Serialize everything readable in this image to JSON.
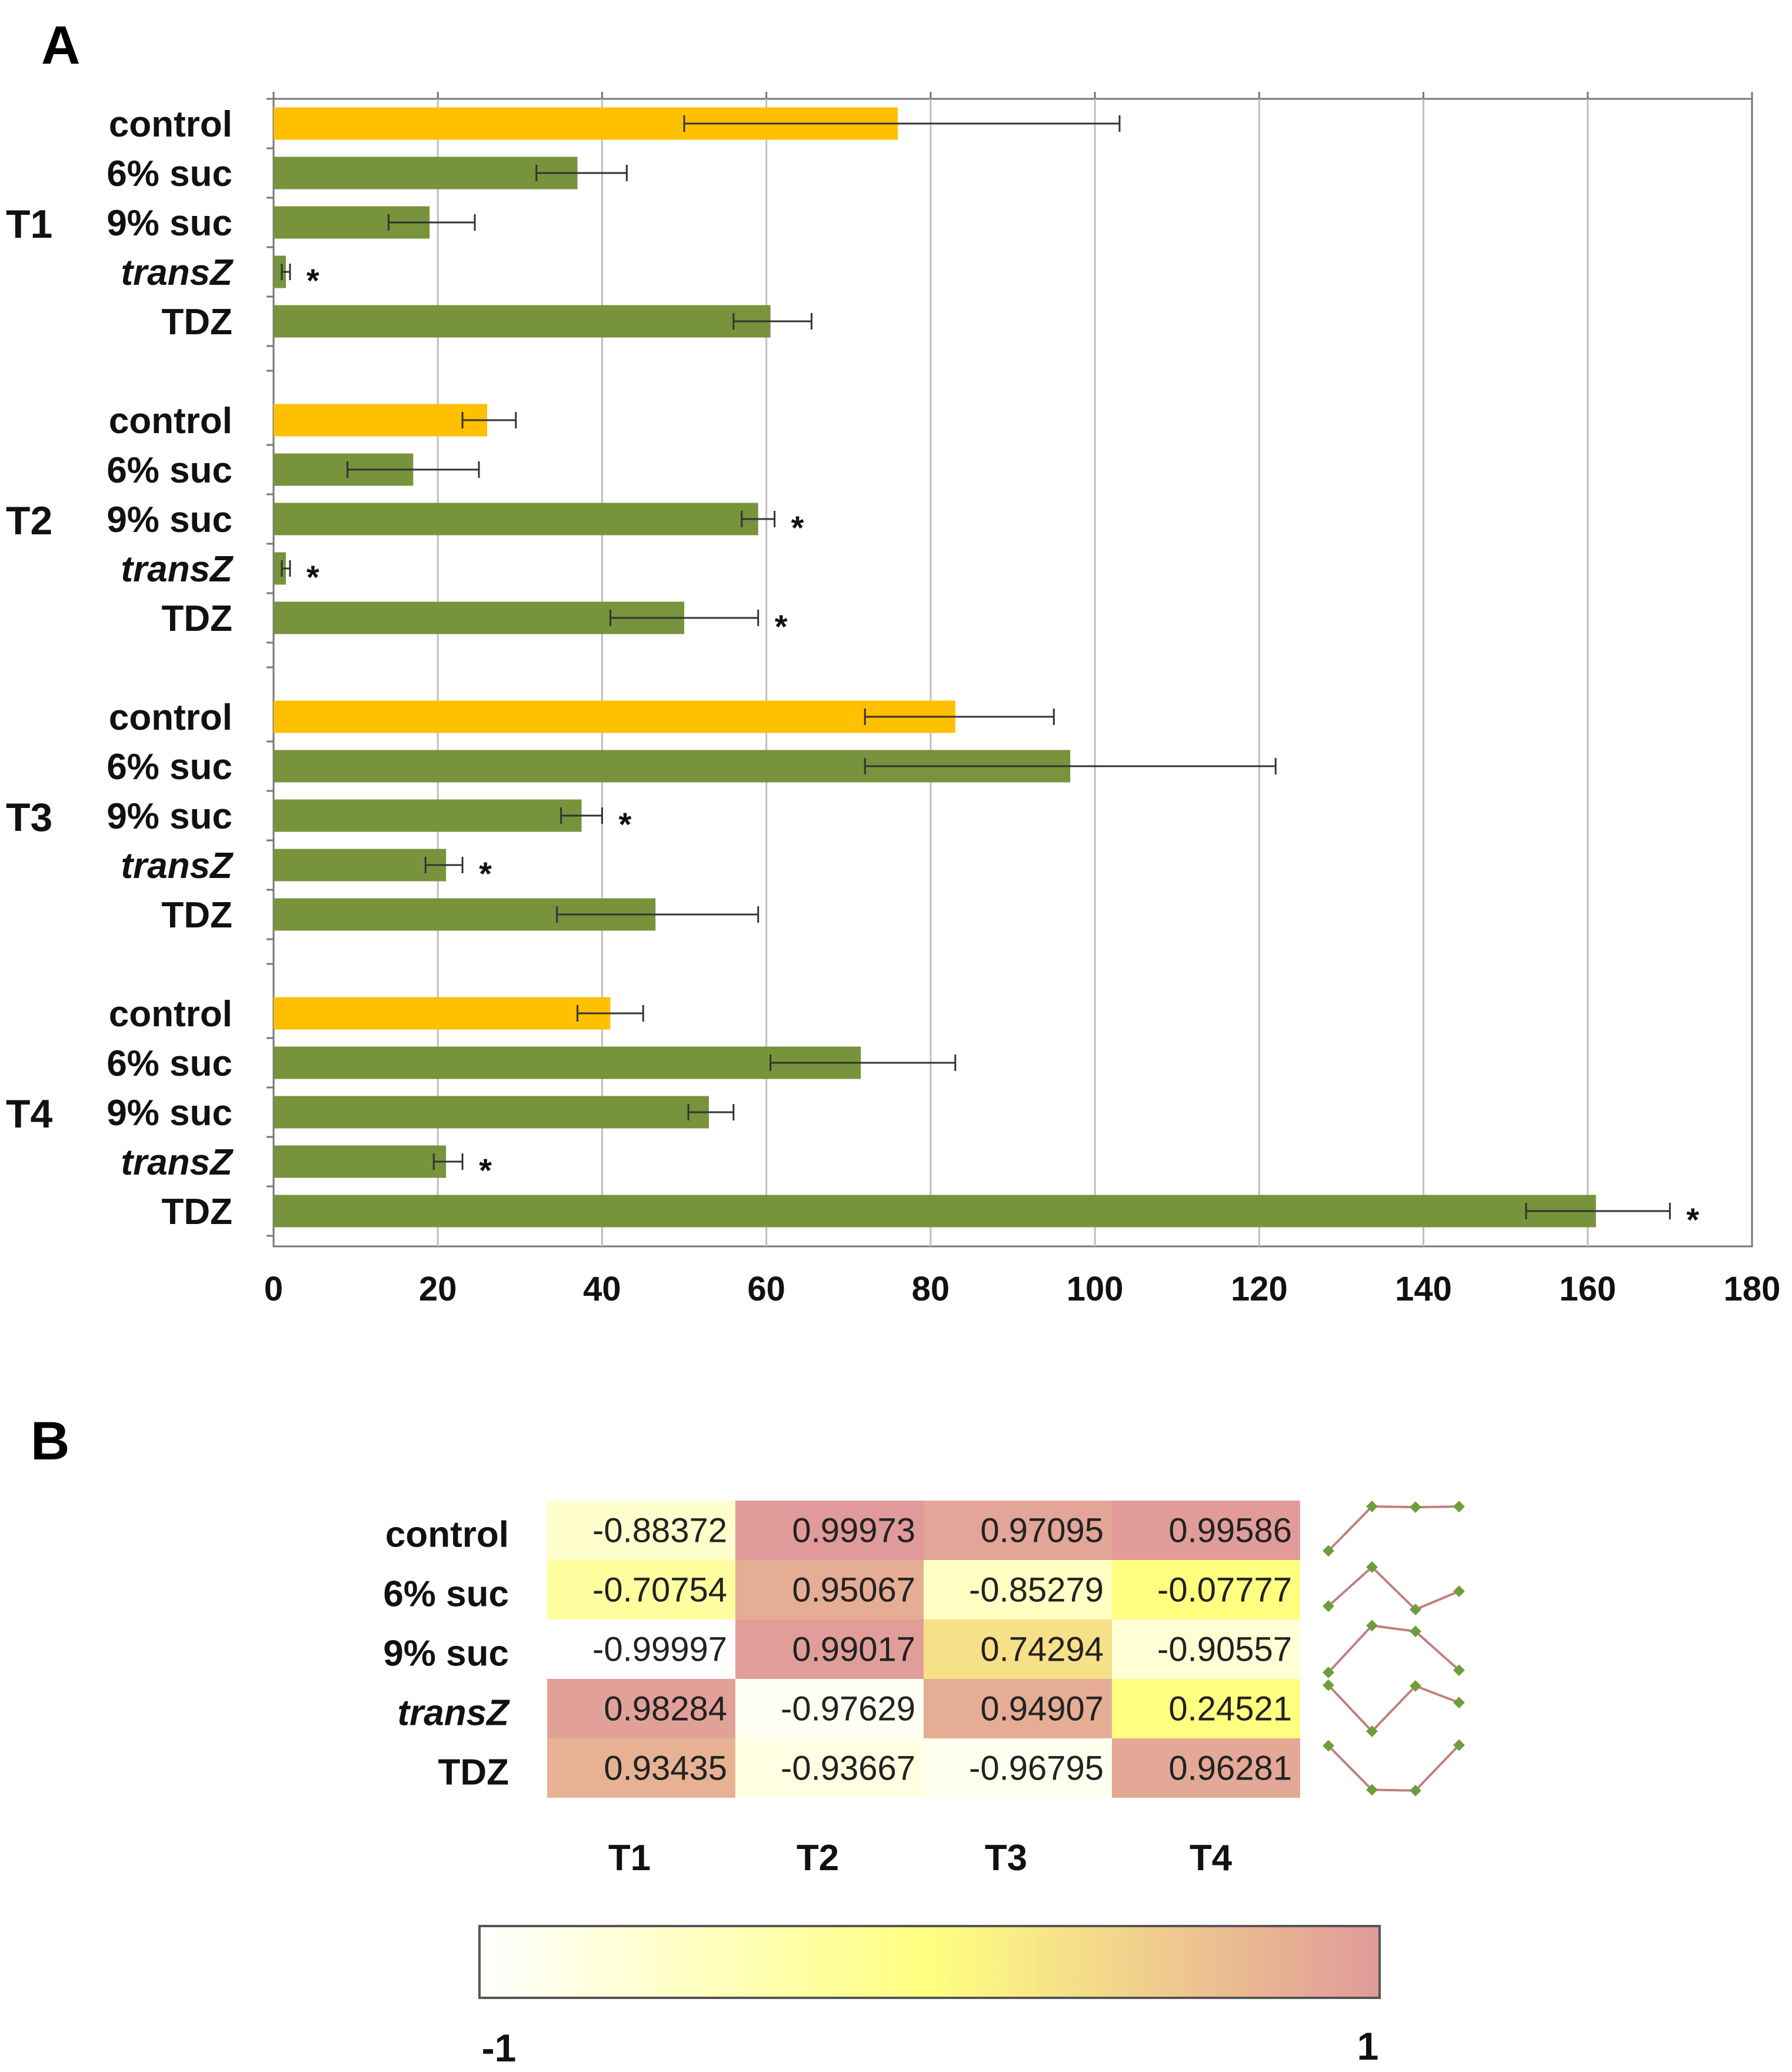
{
  "panel_a_letter": "A",
  "panel_b_letter": "B",
  "chart_data": [
    {
      "type": "bar",
      "orientation": "horizontal",
      "title": "",
      "xlabel": "",
      "ylabel": "",
      "xlim": [
        0,
        180
      ],
      "x_ticks": [
        "0",
        "20",
        "40",
        "60",
        "80",
        "100",
        "120",
        "140",
        "160",
        "180"
      ],
      "grid": "vertical",
      "colors": {
        "control": "#FFC000",
        "treatment": "#77933C"
      },
      "groups": [
        {
          "label": "T1",
          "bars": [
            {
              "label": "control",
              "italic": false,
              "value": 76,
              "err_low": 50,
              "err_high": 103,
              "sig": "",
              "color_key": "control"
            },
            {
              "label": "6% suc",
              "italic": false,
              "value": 37,
              "err_low": 32,
              "err_high": 43,
              "sig": "",
              "color_key": "treatment"
            },
            {
              "label": "9% suc",
              "italic": false,
              "value": 19,
              "err_low": 14,
              "err_high": 24.5,
              "sig": "",
              "color_key": "treatment"
            },
            {
              "label": "transZ",
              "italic": true,
              "value": 1.5,
              "err_low": 1,
              "err_high": 2,
              "sig": "*",
              "color_key": "treatment"
            },
            {
              "label": "TDZ",
              "italic": false,
              "value": 60.5,
              "err_low": 56,
              "err_high": 65.5,
              "sig": "",
              "color_key": "treatment"
            }
          ]
        },
        {
          "label": "T2",
          "bars": [
            {
              "label": "control",
              "italic": false,
              "value": 26,
              "err_low": 23,
              "err_high": 29.5,
              "sig": "",
              "color_key": "control"
            },
            {
              "label": "6% suc",
              "italic": false,
              "value": 17,
              "err_low": 9,
              "err_high": 25,
              "sig": "",
              "color_key": "treatment"
            },
            {
              "label": "9% suc",
              "italic": false,
              "value": 59,
              "err_low": 57,
              "err_high": 61,
              "sig": "*",
              "color_key": "treatment"
            },
            {
              "label": "transZ",
              "italic": true,
              "value": 1.5,
              "err_low": 1,
              "err_high": 2,
              "sig": "*",
              "color_key": "treatment"
            },
            {
              "label": "TDZ",
              "italic": false,
              "value": 50,
              "err_low": 41,
              "err_high": 59,
              "sig": "*",
              "color_key": "treatment"
            }
          ]
        },
        {
          "label": "T3",
          "bars": [
            {
              "label": "control",
              "italic": false,
              "value": 83,
              "err_low": 72,
              "err_high": 95,
              "sig": "",
              "color_key": "control"
            },
            {
              "label": "6% suc",
              "italic": false,
              "value": 97,
              "err_low": 72,
              "err_high": 122,
              "sig": "",
              "color_key": "treatment"
            },
            {
              "label": "9% suc",
              "italic": false,
              "value": 37.5,
              "err_low": 35,
              "err_high": 40,
              "sig": "*",
              "color_key": "treatment"
            },
            {
              "label": "transZ",
              "italic": true,
              "value": 21,
              "err_low": 18.5,
              "err_high": 23,
              "sig": "*",
              "color_key": "treatment"
            },
            {
              "label": "TDZ",
              "italic": false,
              "value": 46.5,
              "err_low": 34.5,
              "err_high": 59,
              "sig": "",
              "color_key": "treatment"
            }
          ]
        },
        {
          "label": "T4",
          "bars": [
            {
              "label": "control",
              "italic": false,
              "value": 41,
              "err_low": 37,
              "err_high": 45,
              "sig": "",
              "color_key": "control"
            },
            {
              "label": "6% suc",
              "italic": false,
              "value": 71.5,
              "err_low": 60.5,
              "err_high": 83,
              "sig": "",
              "color_key": "treatment"
            },
            {
              "label": "9% suc",
              "italic": false,
              "value": 53,
              "err_low": 50.5,
              "err_high": 56,
              "sig": "",
              "color_key": "treatment"
            },
            {
              "label": "transZ",
              "italic": true,
              "value": 21,
              "err_low": 19.5,
              "err_high": 23,
              "sig": "*",
              "color_key": "treatment"
            },
            {
              "label": "TDZ",
              "italic": false,
              "value": 161,
              "err_low": 152.5,
              "err_high": 170,
              "sig": "*",
              "color_key": "treatment"
            }
          ]
        }
      ]
    },
    {
      "type": "heatmap",
      "title": "",
      "columns": [
        "T1",
        "T2",
        "T3",
        "T4"
      ],
      "rows": [
        {
          "label": "control",
          "italic": false,
          "values": [
            "-0.88372",
            "0.99973",
            "0.97095",
            "0.99586"
          ]
        },
        {
          "label": "6% suc",
          "italic": false,
          "values": [
            "-0.70754",
            "0.95067",
            "-0.85279",
            "-0.07777"
          ]
        },
        {
          "label": "9% suc",
          "italic": false,
          "values": [
            "-0.99997",
            "0.99017",
            "0.74294",
            "-0.90557"
          ]
        },
        {
          "label": "transZ",
          "italic": true,
          "values": [
            "0.98284",
            "-0.97629",
            "0.94907",
            "0.24521"
          ]
        },
        {
          "label": "TDZ",
          "italic": false,
          "values": [
            "0.93435",
            "-0.93667",
            "-0.96795",
            "0.96281"
          ]
        }
      ],
      "sparklines": [
        [
          -0.88372,
          0.99973,
          0.97095,
          0.99586
        ],
        [
          -0.70754,
          0.95067,
          -0.85279,
          -0.07777
        ],
        [
          -0.99997,
          0.99017,
          0.74294,
          -0.90557
        ],
        [
          0.98284,
          -0.97629,
          0.94907,
          0.24521
        ],
        [
          0.93435,
          -0.93667,
          -0.96795,
          0.96281
        ]
      ],
      "scale": {
        "min_label": "-1",
        "max_label": "1",
        "min": -1,
        "max": 1,
        "colors": [
          "#FFFFFF",
          "#FFFF80",
          "#E09A9A"
        ]
      },
      "sparkline_colors": {
        "line": "#C08080",
        "marker": "#6E9E3C"
      }
    }
  ]
}
